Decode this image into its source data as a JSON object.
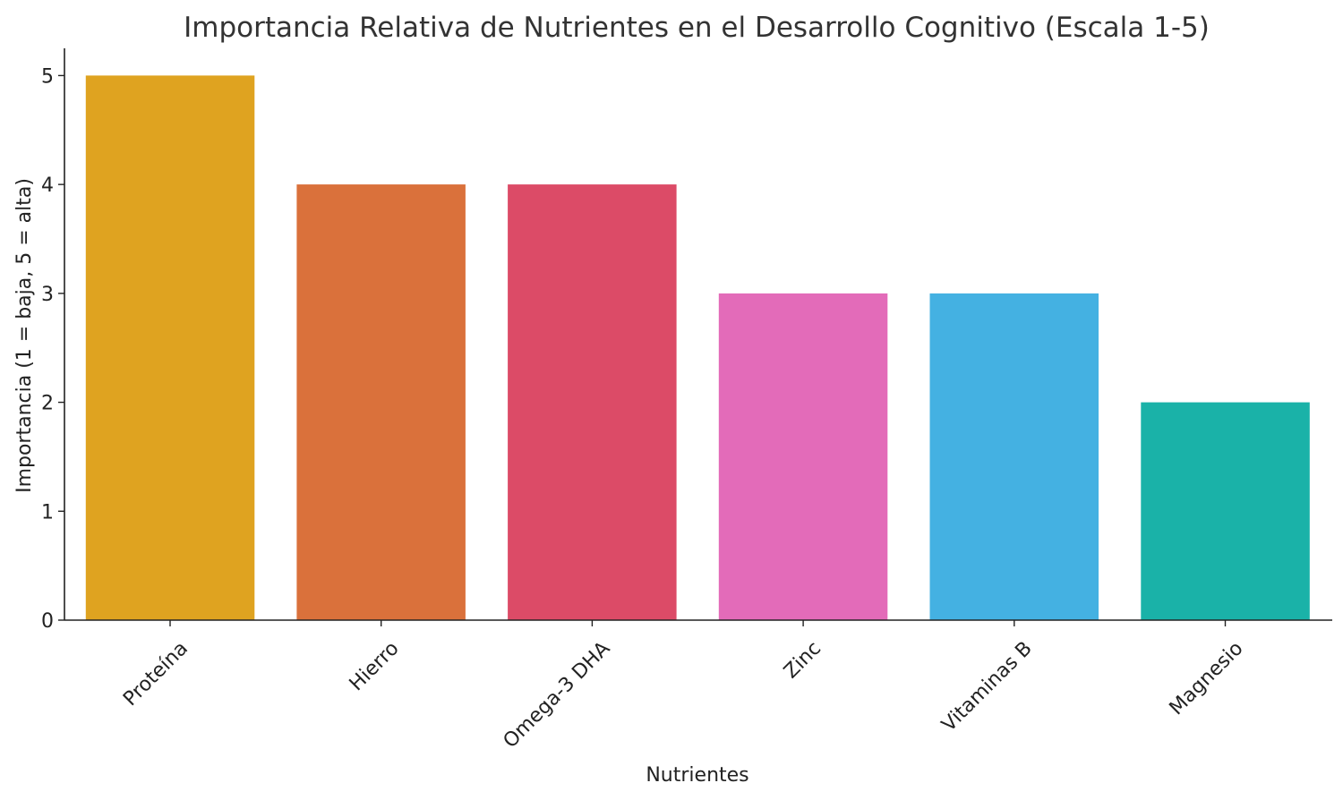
{
  "chart_data": {
    "type": "bar",
    "title": "Importancia Relativa de Nutrientes en el Desarrollo Cognitivo (Escala 1-5)",
    "xlabel": "Nutrientes",
    "ylabel": "Importancia (1 = baja, 5 = alta)",
    "categories": [
      "Proteína",
      "Hierro",
      "Omega-3 DHA",
      "Zinc",
      "Vitaminas B",
      "Magnesio"
    ],
    "values": [
      5,
      4,
      4,
      3,
      3,
      2
    ],
    "colors": [
      "#DFA320",
      "#DA713B",
      "#DC4B67",
      "#E36BB9",
      "#44B1E2",
      "#1AB2A8"
    ],
    "ylim": [
      0,
      5.25
    ],
    "yticks": [
      0,
      1,
      2,
      3,
      4,
      5
    ],
    "grid": false,
    "legend": "none"
  }
}
